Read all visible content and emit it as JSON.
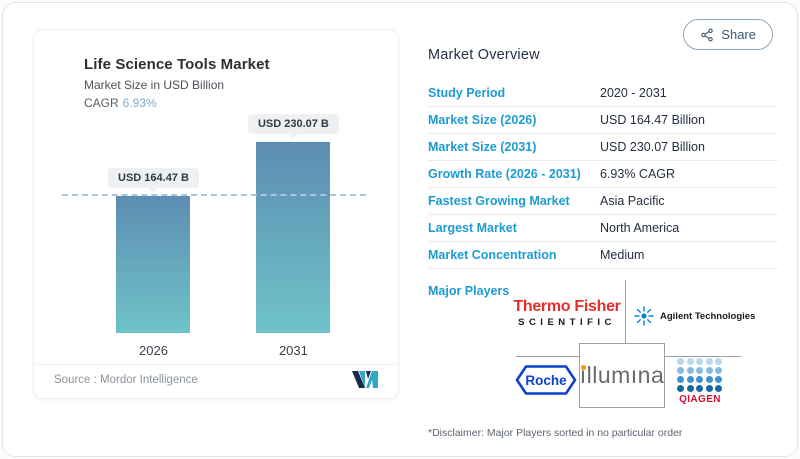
{
  "share": {
    "label": "Share"
  },
  "chart_panel": {
    "title": "Life Science Tools Market",
    "subtitle": "Market Size in USD Billion",
    "cagr_label": "CAGR",
    "cagr_value": "6.93%",
    "source_label": "Source :",
    "source_value": "Mordor Intelligence"
  },
  "chart_data": {
    "type": "bar",
    "categories": [
      "2026",
      "2031"
    ],
    "values": [
      164.47,
      230.07
    ],
    "value_labels": [
      "USD 164.47 B",
      "USD 230.07 B"
    ],
    "title": "Life Science Tools Market",
    "ylabel": "Market Size in USD Billion",
    "ylim": [
      0,
      230.07
    ],
    "reference_line": 164.47,
    "legend": "none",
    "grid": "off",
    "bar_gradient_top": "#5d8db2",
    "bar_gradient_bottom": "#6fc3c9"
  },
  "overview": {
    "heading": "Market Overview",
    "rows": [
      {
        "label": "Study Period",
        "value": "2020 - 2031"
      },
      {
        "label": "Market Size (2026)",
        "value": "USD 164.47 Billion"
      },
      {
        "label": "Market Size (2031)",
        "value": "USD 230.07 Billion"
      },
      {
        "label": "Growth Rate (2026 - 2031)",
        "value": "6.93% CAGR"
      },
      {
        "label": "Fastest Growing Market",
        "value": "Asia Pacific"
      },
      {
        "label": "Largest Market",
        "value": "North America"
      },
      {
        "label": "Market Concentration",
        "value": "Medium"
      }
    ],
    "major_players_label": "Major Players",
    "disclaimer": "*Disclaimer: Major Players sorted in no particular order"
  },
  "logos": {
    "thermo_line1": "Thermo Fisher",
    "thermo_line2": "SCIENTIFIC",
    "agilent": "Agilent Technologies",
    "roche": "Roche",
    "illumina_first": "ı",
    "illumina_rest": "llumına",
    "qiagen": "QIAGEN",
    "qiagen_dot_rows": [
      "#b9d7ee",
      "#83bbe2",
      "#3f92cd",
      "#17689f"
    ]
  },
  "colors": {
    "accent_blue": "#1d9cd3",
    "navy_text": "#242f42",
    "dashed_line": "#a9c6da",
    "thermo_red": "#e62e2d",
    "agilent_blue": "#0085d5",
    "roche_blue": "#0b41cd",
    "illumina_gray": "#696a6d",
    "illumina_orange": "#f8981d",
    "qiagen_red": "#d50f33",
    "mordor_navy": "#1b2a4a",
    "mordor_teal": "#2fa8c0"
  }
}
